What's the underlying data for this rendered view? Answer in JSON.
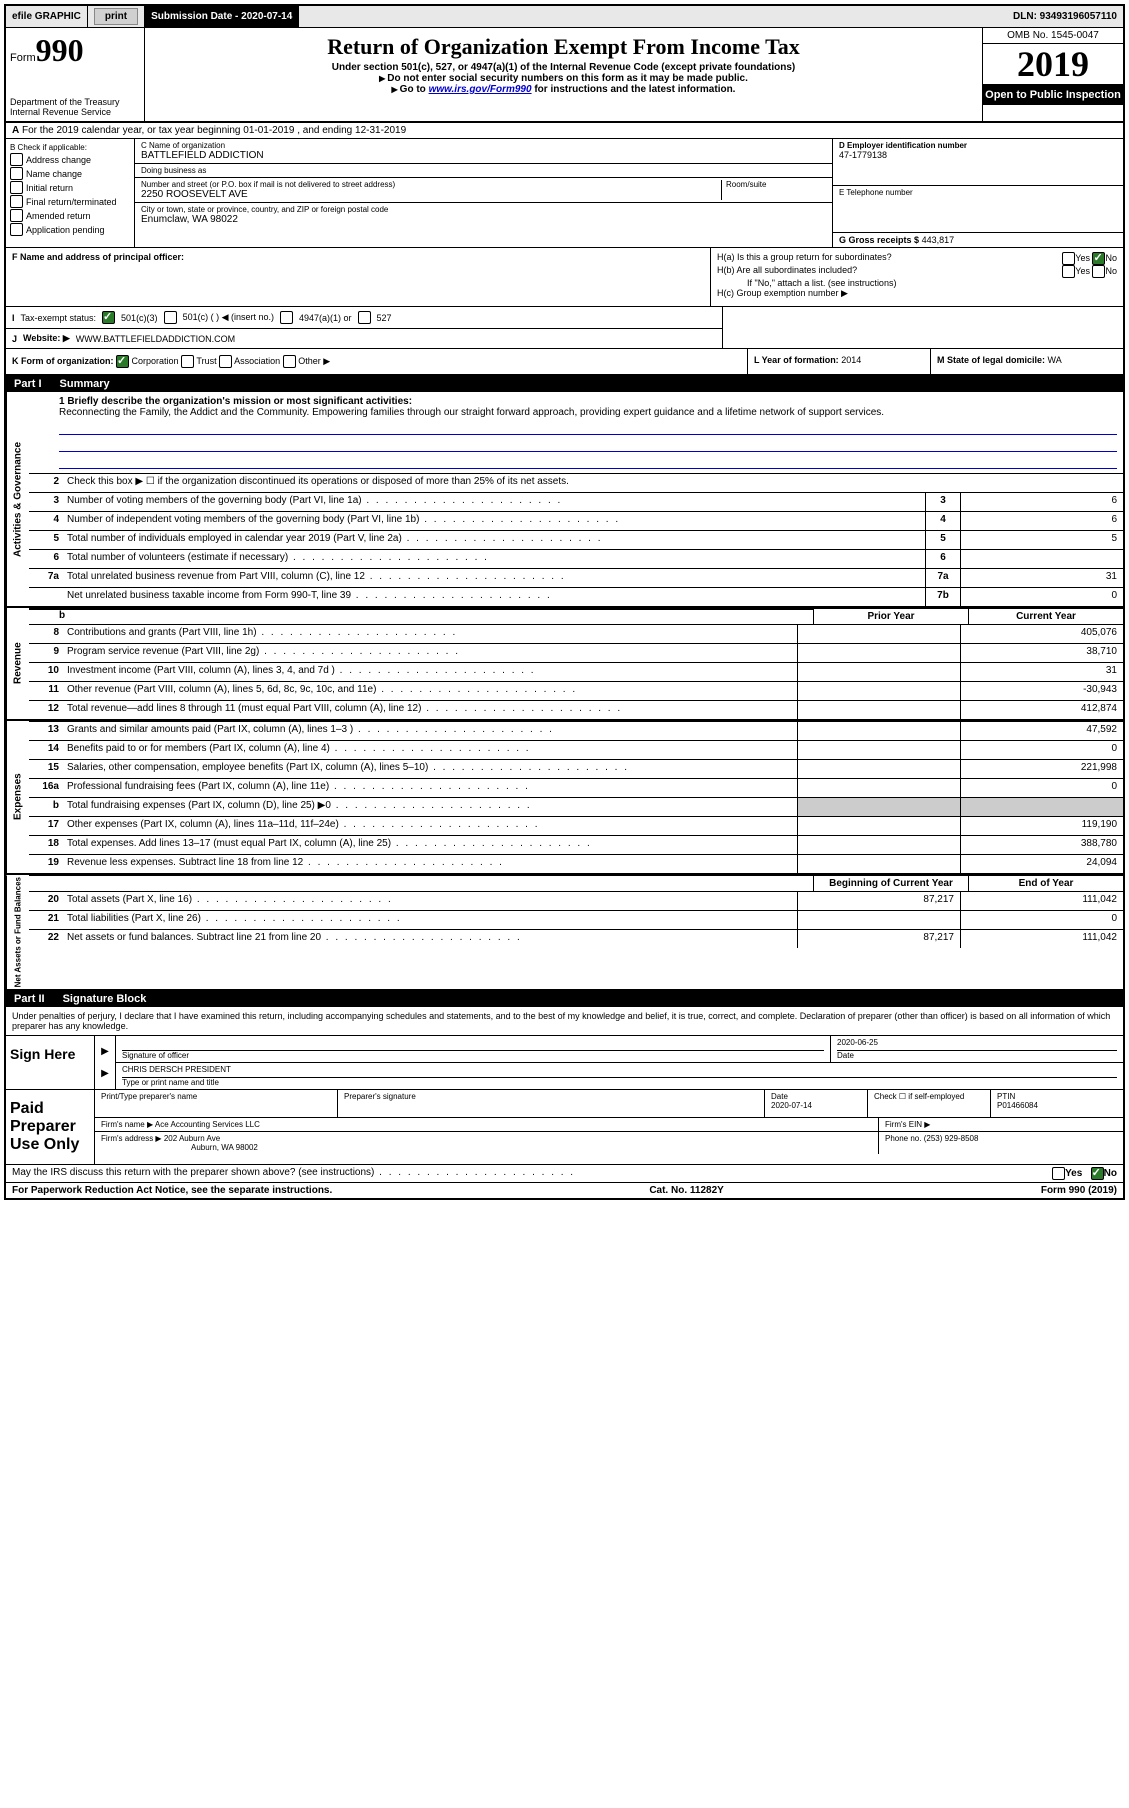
{
  "topbar": {
    "efile": "efile GRAPHIC",
    "print": "print",
    "sub_label": "Submission Date - 2020-07-14",
    "dln": "DLN: 93493196057110"
  },
  "header": {
    "form_label": "Form",
    "form_num": "990",
    "dept": "Department of the Treasury\nInternal Revenue Service",
    "title": "Return of Organization Exempt From Income Tax",
    "sub1": "Under section 501(c), 527, or 4947(a)(1) of the Internal Revenue Code (except private foundations)",
    "sub2": "Do not enter social security numbers on this form as it may be made public.",
    "sub3_pre": "Go to ",
    "sub3_link": "www.irs.gov/Form990",
    "sub3_post": " for instructions and the latest information.",
    "omb": "OMB No. 1545-0047",
    "year": "2019",
    "open": "Open to Public Inspection"
  },
  "row_a": "For the 2019 calendar year, or tax year beginning 01-01-2019    , and ending 12-31-2019",
  "b": {
    "label": "B Check if applicable:",
    "opts": [
      "Address change",
      "Name change",
      "Initial return",
      "Final return/terminated",
      "Amended return",
      "Application pending"
    ]
  },
  "c": {
    "name_label": "C Name of organization",
    "name": "BATTLEFIELD ADDICTION",
    "dba_label": "Doing business as",
    "dba": "",
    "street_label": "Number and street (or P.O. box if mail is not delivered to street address)",
    "street": "2250 ROOSEVELT AVE",
    "room_label": "Room/suite",
    "city_label": "City or town, state or province, country, and ZIP or foreign postal code",
    "city": "Enumclaw, WA  98022"
  },
  "d": {
    "ein_label": "D Employer identification number",
    "ein": "47-1779138",
    "tel_label": "E Telephone number",
    "tel": "",
    "gross_label": "G Gross receipts $",
    "gross": "443,817"
  },
  "f": {
    "label": "F  Name and address of principal officer:",
    "val": ""
  },
  "h": {
    "a_label": "H(a)  Is this a group return for subordinates?",
    "b_label": "H(b)  Are all subordinates included?",
    "b_note": "If \"No,\" attach a list. (see instructions)",
    "c_label": "H(c)  Group exemption number ▶",
    "yes": "Yes",
    "no": "No"
  },
  "i": {
    "label": "Tax-exempt status:",
    "o1": "501(c)(3)",
    "o2": "501(c) (  ) ◀ (insert no.)",
    "o3": "4947(a)(1) or",
    "o4": "527"
  },
  "j": {
    "label": "Website: ▶",
    "val": "WWW.BATTLEFIELDADDICTION.COM"
  },
  "k": {
    "label": "K Form of organization:",
    "o1": "Corporation",
    "o2": "Trust",
    "o3": "Association",
    "o4": "Other ▶",
    "l_label": "L Year of formation:",
    "l_val": "2014",
    "m_label": "M State of legal domicile:",
    "m_val": "WA"
  },
  "part1": {
    "title": "Part I",
    "subtitle": "Summary",
    "tab_ag": "Activities & Governance",
    "tab_rev": "Revenue",
    "tab_exp": "Expenses",
    "tab_na": "Net Assets or Fund Balances",
    "l1_label": "1  Briefly describe the organization's mission or most significant activities:",
    "l1_text": "Reconnecting the Family, the Addict and the Community. Empowering families through our straight forward approach, providing expert guidance and a lifetime network of support services.",
    "l2": "Check this box ▶ ☐  if the organization discontinued its operations or disposed of more than 25% of its net assets.",
    "lines_ag": [
      {
        "n": "3",
        "d": "Number of voting members of the governing body (Part VI, line 1a)",
        "box": "3",
        "v": "6"
      },
      {
        "n": "4",
        "d": "Number of independent voting members of the governing body (Part VI, line 1b)",
        "box": "4",
        "v": "6"
      },
      {
        "n": "5",
        "d": "Total number of individuals employed in calendar year 2019 (Part V, line 2a)",
        "box": "5",
        "v": "5"
      },
      {
        "n": "6",
        "d": "Total number of volunteers (estimate if necessary)",
        "box": "6",
        "v": ""
      },
      {
        "n": "7a",
        "d": "Total unrelated business revenue from Part VIII, column (C), line 12",
        "box": "7a",
        "v": "31"
      },
      {
        "n": "",
        "d": "Net unrelated business taxable income from Form 990-T, line 39",
        "box": "7b",
        "v": "0"
      }
    ],
    "col_prior": "Prior Year",
    "col_current": "Current Year",
    "lines_rev": [
      {
        "n": "8",
        "d": "Contributions and grants (Part VIII, line 1h)",
        "p": "",
        "c": "405,076"
      },
      {
        "n": "9",
        "d": "Program service revenue (Part VIII, line 2g)",
        "p": "",
        "c": "38,710"
      },
      {
        "n": "10",
        "d": "Investment income (Part VIII, column (A), lines 3, 4, and 7d )",
        "p": "",
        "c": "31"
      },
      {
        "n": "11",
        "d": "Other revenue (Part VIII, column (A), lines 5, 6d, 8c, 9c, 10c, and 11e)",
        "p": "",
        "c": "-30,943"
      },
      {
        "n": "12",
        "d": "Total revenue—add lines 8 through 11 (must equal Part VIII, column (A), line 12)",
        "p": "",
        "c": "412,874"
      }
    ],
    "lines_exp": [
      {
        "n": "13",
        "d": "Grants and similar amounts paid (Part IX, column (A), lines 1–3 )",
        "p": "",
        "c": "47,592"
      },
      {
        "n": "14",
        "d": "Benefits paid to or for members (Part IX, column (A), line 4)",
        "p": "",
        "c": "0"
      },
      {
        "n": "15",
        "d": "Salaries, other compensation, employee benefits (Part IX, column (A), lines 5–10)",
        "p": "",
        "c": "221,998"
      },
      {
        "n": "16a",
        "d": "Professional fundraising fees (Part IX, column (A), line 11e)",
        "p": "",
        "c": "0"
      },
      {
        "n": "b",
        "d": "Total fundraising expenses (Part IX, column (D), line 25) ▶0",
        "p": "shaded",
        "c": "shaded"
      },
      {
        "n": "17",
        "d": "Other expenses (Part IX, column (A), lines 11a–11d, 11f–24e)",
        "p": "",
        "c": "119,190"
      },
      {
        "n": "18",
        "d": "Total expenses. Add lines 13–17 (must equal Part IX, column (A), line 25)",
        "p": "",
        "c": "388,780"
      },
      {
        "n": "19",
        "d": "Revenue less expenses. Subtract line 18 from line 12",
        "p": "",
        "c": "24,094"
      }
    ],
    "col_begin": "Beginning of Current Year",
    "col_end": "End of Year",
    "lines_na": [
      {
        "n": "20",
        "d": "Total assets (Part X, line 16)",
        "p": "87,217",
        "c": "111,042"
      },
      {
        "n": "21",
        "d": "Total liabilities (Part X, line 26)",
        "p": "",
        "c": "0"
      },
      {
        "n": "22",
        "d": "Net assets or fund balances. Subtract line 21 from line 20",
        "p": "87,217",
        "c": "111,042"
      }
    ]
  },
  "part2": {
    "title": "Part II",
    "subtitle": "Signature Block",
    "decl": "Under penalties of perjury, I declare that I have examined this return, including accompanying schedules and statements, and to the best of my knowledge and belief, it is true, correct, and complete. Declaration of preparer (other than officer) is based on all information of which preparer has any knowledge.",
    "sign_here": "Sign Here",
    "sig_officer_label": "Signature of officer",
    "sig_date_label": "Date",
    "sig_date": "2020-06-25",
    "name_title_label": "Type or print name and title",
    "name_title": "CHRIS DERSCH  PRESIDENT",
    "paid": "Paid Preparer Use Only",
    "prep_name_label": "Print/Type preparer's name",
    "prep_sig_label": "Preparer's signature",
    "prep_date_label": "Date",
    "prep_date": "2020-07-14",
    "check_self": "Check ☐ if self-employed",
    "ptin_label": "PTIN",
    "ptin": "P01466084",
    "firm_name_label": "Firm's name    ▶",
    "firm_name": "Ace Accounting Services LLC",
    "firm_ein_label": "Firm's EIN ▶",
    "firm_addr_label": "Firm's address ▶",
    "firm_addr1": "202 Auburn Ave",
    "firm_addr2": "Auburn, WA  98002",
    "phone_label": "Phone no.",
    "phone": "(253) 929-8508",
    "irs_discuss": "May the IRS discuss this return with the preparer shown above? (see instructions)"
  },
  "footer": {
    "left": "For Paperwork Reduction Act Notice, see the separate instructions.",
    "mid": "Cat. No. 11282Y",
    "right": "Form 990 (2019)"
  }
}
